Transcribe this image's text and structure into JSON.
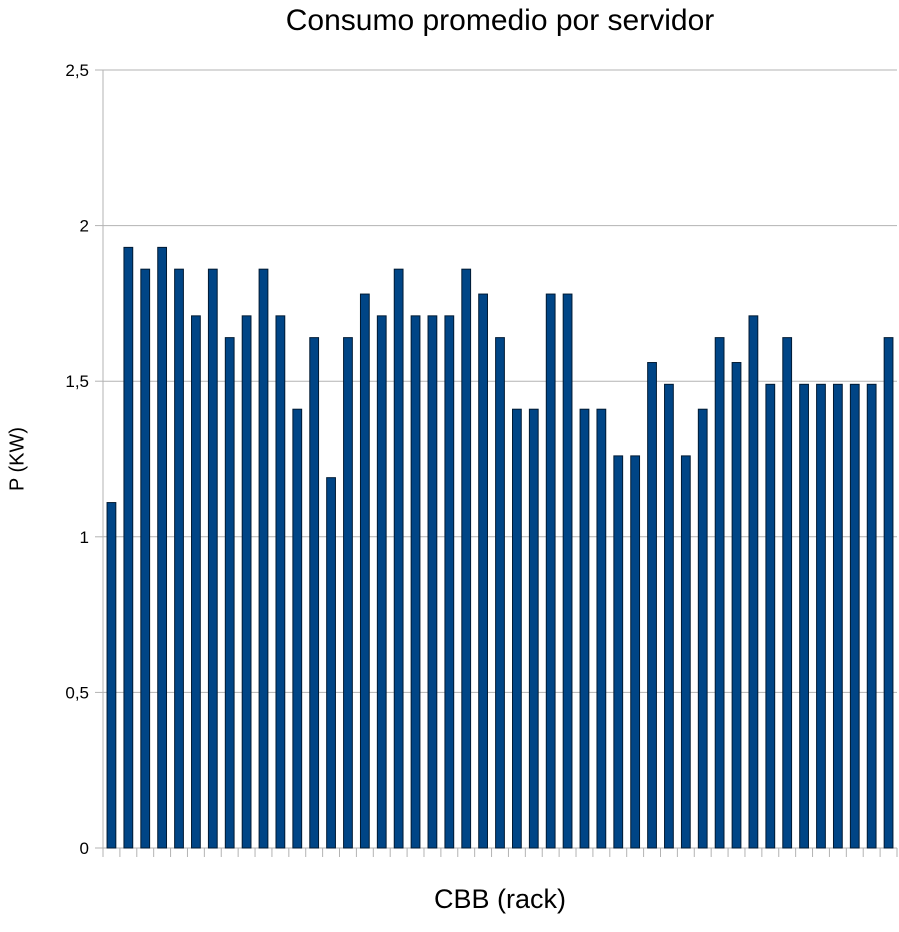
{
  "chart_data": {
    "type": "bar",
    "title": "Consumo promedio por servidor",
    "xlabel": "CBB (rack)",
    "ylabel": "P (KW)",
    "ylim": [
      0,
      2.5
    ],
    "yticks": [
      0,
      0.5,
      1,
      1.5,
      2,
      2.5
    ],
    "ytick_labels": [
      "0",
      "0,5",
      "1",
      "1,5",
      "2",
      "2,5"
    ],
    "grid": true,
    "bar_color": "#004586",
    "categories": [
      "",
      "",
      "",
      "",
      "",
      "",
      "",
      "",
      "",
      "",
      "",
      "",
      "",
      "",
      "",
      "",
      "",
      "",
      "",
      "",
      "",
      "",
      "",
      "",
      "",
      "",
      "",
      "",
      "",
      "",
      "",
      "",
      "",
      "",
      "",
      "",
      "",
      "",
      "",
      "",
      "",
      "",
      "",
      "",
      "",
      "",
      ""
    ],
    "values": [
      1.11,
      1.93,
      1.86,
      1.93,
      1.86,
      1.71,
      1.86,
      1.64,
      1.71,
      1.86,
      1.71,
      1.41,
      1.64,
      1.19,
      1.64,
      1.78,
      1.71,
      1.86,
      1.71,
      1.71,
      1.71,
      1.86,
      1.78,
      1.64,
      1.41,
      1.41,
      1.78,
      1.78,
      1.41,
      1.41,
      1.26,
      1.26,
      1.56,
      1.49,
      1.26,
      1.41,
      1.64,
      1.56,
      1.71,
      1.49,
      1.64,
      1.49,
      1.49,
      1.49,
      1.49,
      1.49,
      1.64
    ]
  }
}
